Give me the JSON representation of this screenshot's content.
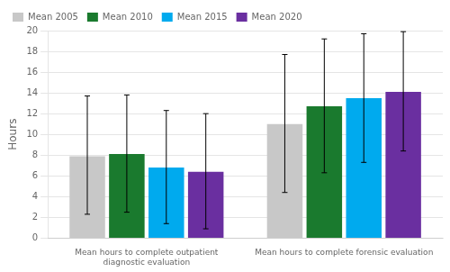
{
  "chart_data": {
    "type": "bar",
    "categories": [
      "Mean hours to complete outpatient\ndiagnostic evaluation",
      "Mean hours to complete forensic evaluation"
    ],
    "series": [
      {
        "name": "Mean 2005",
        "color": "#c8c8c8",
        "values": [
          7.9,
          11.0
        ],
        "error_lo": [
          5.6,
          6.6
        ],
        "error_hi": [
          5.8,
          6.7
        ]
      },
      {
        "name": "Mean 2010",
        "color": "#1a7a2e",
        "values": [
          8.1,
          12.7
        ],
        "error_lo": [
          5.6,
          6.4
        ],
        "error_hi": [
          5.7,
          6.5
        ]
      },
      {
        "name": "Mean 2015",
        "color": "#00aaee",
        "values": [
          6.8,
          13.5
        ],
        "error_lo": [
          5.4,
          6.2
        ],
        "error_hi": [
          5.5,
          6.2
        ]
      },
      {
        "name": "Mean 2020",
        "color": "#6a2fa0",
        "values": [
          6.4,
          14.1
        ],
        "error_lo": [
          5.5,
          5.7
        ],
        "error_hi": [
          5.6,
          5.8
        ]
      }
    ],
    "ylabel": "Hours",
    "ylim": [
      0,
      20
    ],
    "yticks": [
      0,
      2,
      4,
      6,
      8,
      10,
      12,
      14,
      16,
      18,
      20
    ],
    "grid": true,
    "legend": "upper left"
  }
}
